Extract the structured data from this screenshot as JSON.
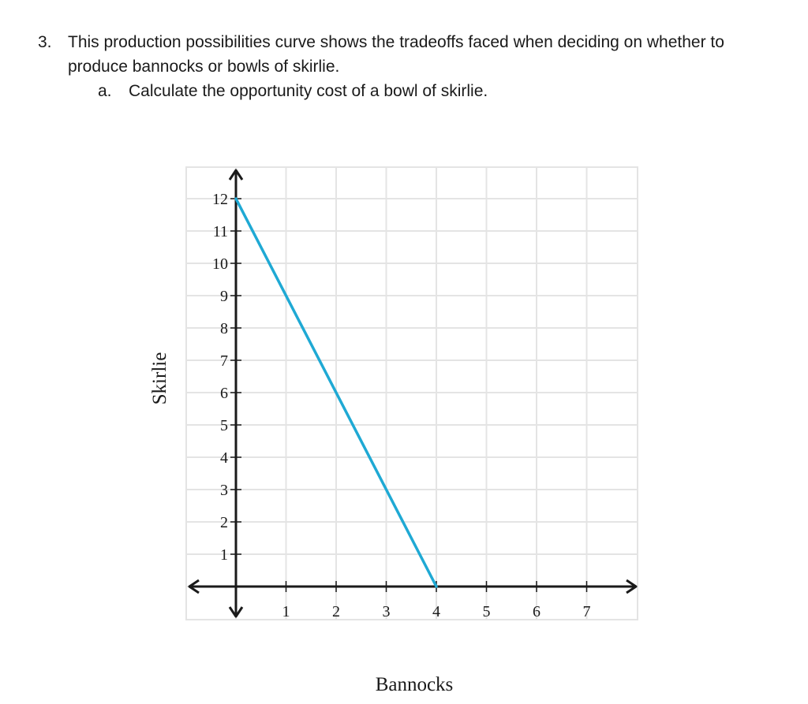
{
  "question": {
    "number": "3.",
    "text": "This production possibilities curve shows the tradeoffs faced when deciding on whether to produce bannocks or bowls of skirlie.",
    "sub_letter": "a.",
    "sub_text": "Calculate the opportunity cost of a bowl of skirlie."
  },
  "chart_data": {
    "type": "line",
    "title": "",
    "xlabel": "Bannocks",
    "ylabel": "Skirlie",
    "xlim": [
      -1,
      8
    ],
    "ylim": [
      -1,
      13
    ],
    "x_ticks": [
      1,
      2,
      3,
      4,
      5,
      6,
      7
    ],
    "y_ticks": [
      1,
      2,
      3,
      4,
      5,
      6,
      7,
      8,
      9,
      10,
      11,
      12
    ],
    "grid": true,
    "legend": "none",
    "series": [
      {
        "color": "#1fa9d4",
        "points": [
          {
            "x": 0,
            "y": 12
          },
          {
            "x": 4,
            "y": 0
          }
        ]
      }
    ],
    "colors": {
      "grid": "#e4e4e4",
      "axis": "#1a1a1a"
    }
  }
}
